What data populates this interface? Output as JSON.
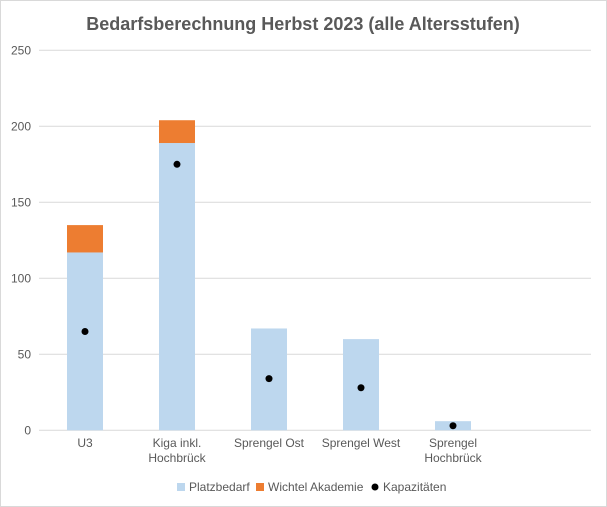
{
  "chart_data": {
    "type": "bar",
    "title": "Bedarfsberechnung Herbst 2023 (alle Altersstufen)",
    "categories": [
      [
        "U3"
      ],
      [
        "Kiga inkl.",
        "Hochbrück"
      ],
      [
        "Sprengel Ost"
      ],
      [
        "Sprengel West"
      ],
      [
        "Sprengel",
        "Hochbrück"
      ],
      [
        ""
      ]
    ],
    "series": [
      {
        "name": "Platzbedarf",
        "kind": "stacked-bar",
        "color": "#bdd7ee",
        "values": [
          117,
          189,
          67,
          60,
          6,
          null
        ]
      },
      {
        "name": "Wichtel Akademie",
        "kind": "stacked-bar",
        "color": "#ed7d31",
        "values": [
          18,
          15,
          0,
          0,
          0,
          null
        ]
      },
      {
        "name": "Kapazitäten",
        "kind": "marker",
        "color": "#000000",
        "values": [
          65,
          175,
          34,
          28,
          3,
          null
        ]
      }
    ],
    "yticks": [
      "0",
      "50",
      "100",
      "150",
      "200",
      "250"
    ],
    "ylim": [
      0,
      250
    ],
    "grid": true,
    "legend": "bottom"
  }
}
